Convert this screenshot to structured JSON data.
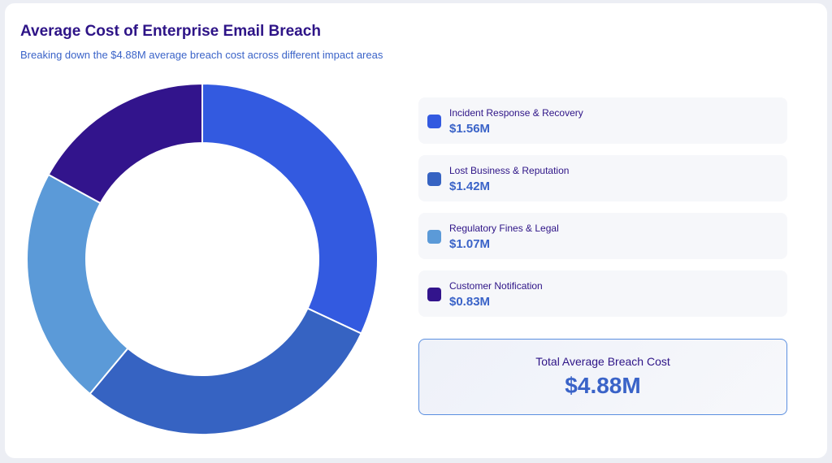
{
  "header": {
    "title": "Average Cost of Enterprise Email Breach",
    "subtitle": "Breaking down the $4.88M average breach cost across different impact areas"
  },
  "chart_data": {
    "type": "pie",
    "donut": true,
    "title": "Average Cost of Enterprise Email Breach",
    "subtitle": "Breaking down the $4.88M average breach cost across different impact areas",
    "categories": [
      "Incident Response & Recovery",
      "Lost Business & Reputation",
      "Regulatory Fines & Legal",
      "Customer Notification"
    ],
    "values": [
      1.56,
      1.42,
      1.07,
      0.83
    ],
    "unit": "$M",
    "colors": [
      "#335ae0",
      "#3663c2",
      "#5b9ad8",
      "#32148c"
    ],
    "legend_position": "right"
  },
  "legend": [
    {
      "label": "Incident Response & Recovery",
      "value": "$1.56M",
      "color": "#335ae0"
    },
    {
      "label": "Lost Business & Reputation",
      "value": "$1.42M",
      "color": "#3663c2"
    },
    {
      "label": "Regulatory Fines & Legal",
      "value": "$1.07M",
      "color": "#5b9ad8"
    },
    {
      "label": "Customer Notification",
      "value": "$0.83M",
      "color": "#32148c"
    }
  ],
  "total": {
    "label": "Total Average Breach Cost",
    "value": "$4.88M"
  }
}
